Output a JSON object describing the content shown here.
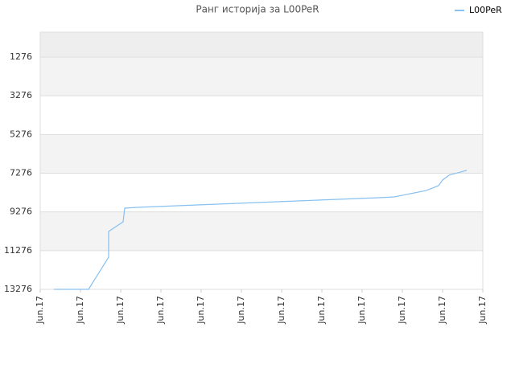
{
  "chart_data": {
    "type": "line",
    "title": "Ранг историја за L00PeR",
    "x": [
      0.34,
      1.2,
      1.7,
      1.7,
      2.06,
      2.1,
      2.4,
      2.9,
      3.4,
      3.9,
      4.4,
      4.9,
      5.4,
      5.9,
      6.4,
      6.9,
      7.4,
      7.9,
      8.4,
      8.8,
      9.2,
      9.6,
      9.9,
      10.0,
      10.16,
      10.6
    ],
    "series": [
      {
        "name": "L00PeR",
        "color": "#88c0f0",
        "values": [
          13276,
          13276,
          11615,
          10286,
          9788,
          9082,
          9040,
          8999,
          8957,
          8916,
          8874,
          8832,
          8791,
          8749,
          8708,
          8666,
          8625,
          8583,
          8542,
          8500,
          8334,
          8168,
          7919,
          7628,
          7379,
          7129
        ]
      }
    ],
    "xlim": [
      0,
      11
    ],
    "xticks": [
      {
        "value": 0,
        "label": "Jun.17"
      },
      {
        "value": 1,
        "label": "Jun.17"
      },
      {
        "value": 2,
        "label": "Jun.17"
      },
      {
        "value": 3,
        "label": "Jun.17"
      },
      {
        "value": 4,
        "label": "Jun.17"
      },
      {
        "value": 5,
        "label": "Jun.17"
      },
      {
        "value": 6,
        "label": "Jun.17"
      },
      {
        "value": 7,
        "label": "Jun.17"
      },
      {
        "value": 8,
        "label": "Jun.17"
      },
      {
        "value": 9,
        "label": "Jun.17"
      },
      {
        "value": 10,
        "label": "Jun.17"
      },
      {
        "value": 11,
        "label": "Jun.17"
      }
    ],
    "ylim": [
      13276,
      -11
    ],
    "yticks": [
      1276,
      3276,
      5276,
      7276,
      9276,
      11276,
      13276
    ],
    "grid": true,
    "legend": "top-right"
  }
}
